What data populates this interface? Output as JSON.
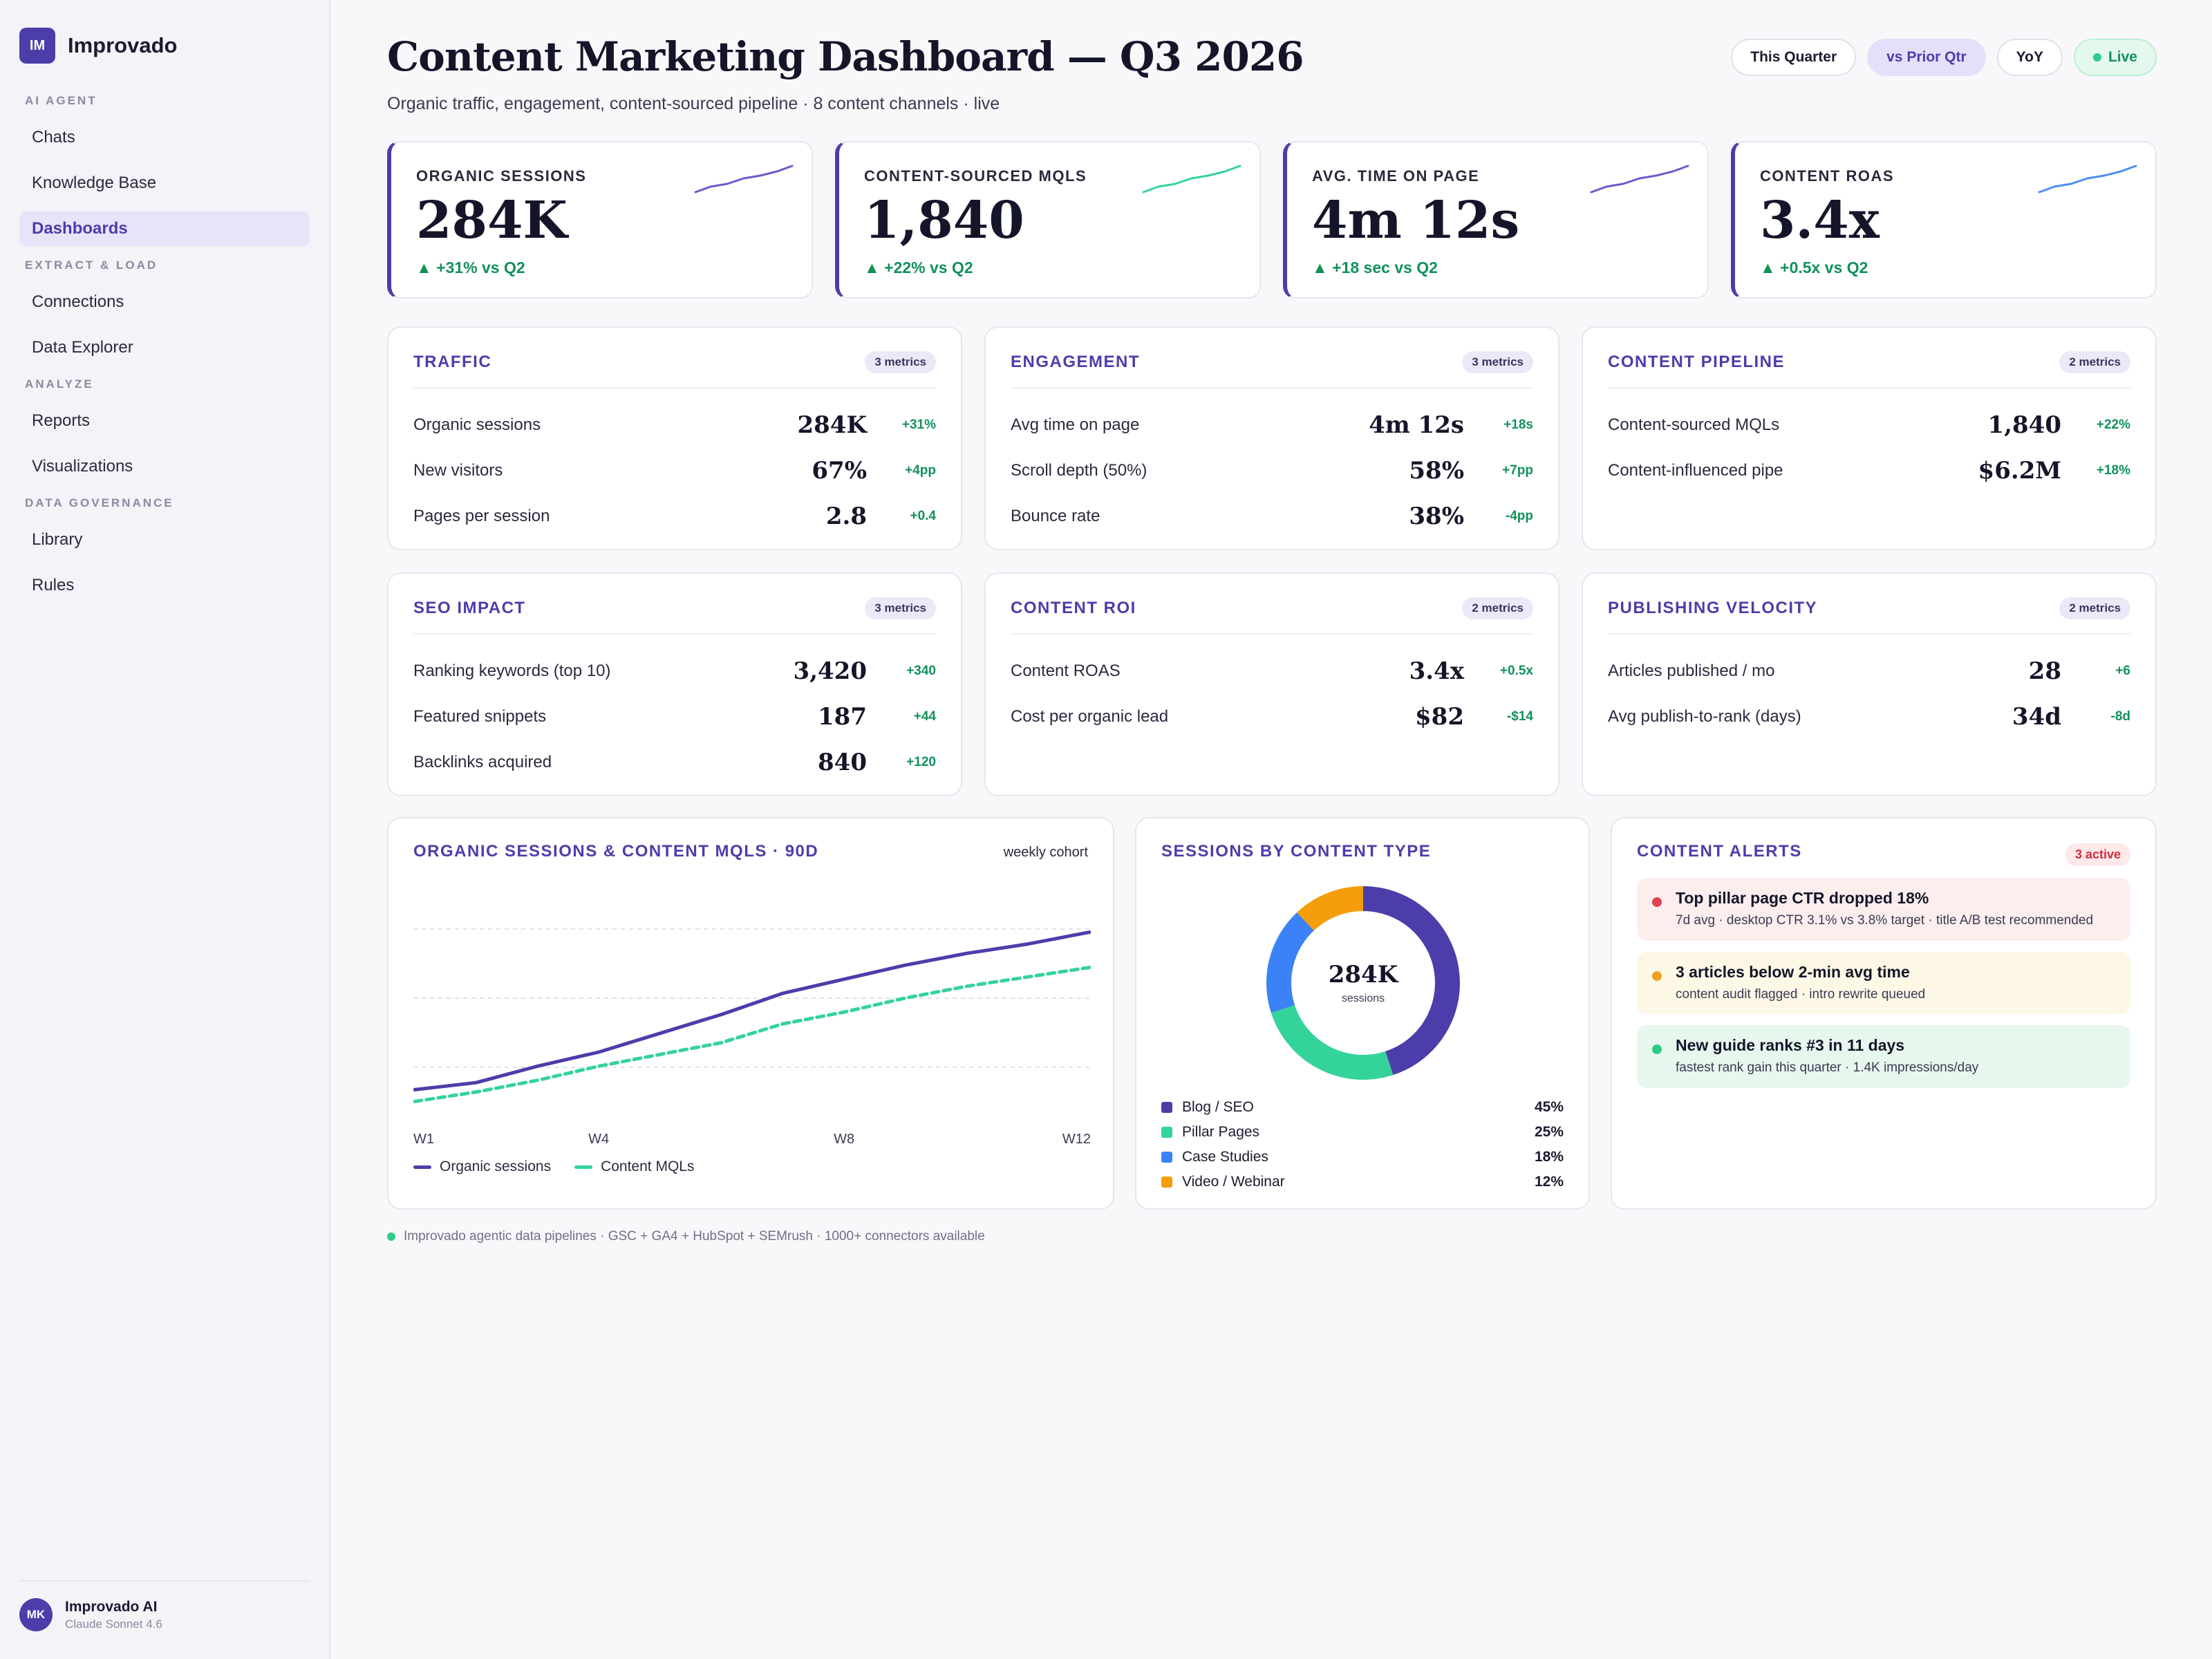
{
  "app": {
    "badge": "IM",
    "name": "Improvado"
  },
  "nav": [
    {
      "section": "AI AGENT",
      "items": [
        "Chats",
        "Knowledge Base",
        "Dashboards"
      ]
    },
    {
      "section": "EXTRACT & LOAD",
      "items": [
        "Connections",
        "Data Explorer"
      ]
    },
    {
      "section": "ANALYZE",
      "items": [
        "Reports",
        "Visualizations"
      ]
    },
    {
      "section": "DATA GOVERNANCE",
      "items": [
        "Library",
        "Rules"
      ]
    }
  ],
  "active_nav": "Dashboards",
  "user": {
    "initials": "MK",
    "name": "Improvado AI",
    "model": "Claude Sonnet 4.6"
  },
  "header": {
    "title": "Content Marketing Dashboard — Q3 2026",
    "subtitle": "Organic traffic, engagement, content-sourced pipeline · 8 content channels · live",
    "filters": [
      "This Quarter",
      "vs Prior Qtr",
      "YoY",
      "Live"
    ],
    "selected_filter": "vs Prior Qtr"
  },
  "kpis": [
    {
      "label": "ORGANIC SESSIONS",
      "value": "284K",
      "delta": "▲ +31% vs Q2",
      "spark_color": "#6a5acd"
    },
    {
      "label": "CONTENT-SOURCED MQLS",
      "value": "1,840",
      "delta": "▲ +22% vs Q2",
      "spark_color": "#34d399"
    },
    {
      "label": "AVG. TIME ON PAGE",
      "value": "4m 12s",
      "delta": "▲ +18 sec vs Q2",
      "spark_color": "#6a5acd"
    },
    {
      "label": "CONTENT ROAS",
      "value": "3.4x",
      "delta": "▲ +0.5x vs Q2",
      "spark_color": "#4c8df6"
    }
  ],
  "cards": [
    {
      "title": "TRAFFIC",
      "chip": "3 metrics",
      "rows": [
        {
          "label": "Organic sessions",
          "value": "284K",
          "delta": "+31%"
        },
        {
          "label": "New visitors",
          "value": "67%",
          "delta": "+4pp"
        },
        {
          "label": "Pages per session",
          "value": "2.8",
          "delta": "+0.4"
        }
      ]
    },
    {
      "title": "ENGAGEMENT",
      "chip": "3 metrics",
      "rows": [
        {
          "label": "Avg time on page",
          "value": "4m 12s",
          "delta": "+18s"
        },
        {
          "label": "Scroll depth (50%)",
          "value": "58%",
          "delta": "+7pp"
        },
        {
          "label": "Bounce rate",
          "value": "38%",
          "delta": "-4pp"
        }
      ]
    },
    {
      "title": "CONTENT PIPELINE",
      "chip": "2 metrics",
      "rows": [
        {
          "label": "Content-sourced MQLs",
          "value": "1,840",
          "delta": "+22%"
        },
        {
          "label": "Content-influenced pipe",
          "value": "$6.2M",
          "delta": "+18%"
        }
      ]
    },
    {
      "title": "SEO IMPACT",
      "chip": "3 metrics",
      "rows": [
        {
          "label": "Ranking keywords (top 10)",
          "value": "3,420",
          "delta": "+340"
        },
        {
          "label": "Featured snippets",
          "value": "187",
          "delta": "+44"
        },
        {
          "label": "Backlinks acquired",
          "value": "840",
          "delta": "+120"
        }
      ]
    },
    {
      "title": "CONTENT ROI",
      "chip": "2 metrics",
      "rows": [
        {
          "label": "Content ROAS",
          "value": "3.4x",
          "delta": "+0.5x"
        },
        {
          "label": "Cost per organic lead",
          "value": "$82",
          "delta": "-$14"
        }
      ]
    },
    {
      "title": "PUBLISHING VELOCITY",
      "chip": "2 metrics",
      "rows": [
        {
          "label": "Articles published / mo",
          "value": "28",
          "delta": "+6"
        },
        {
          "label": "Avg publish-to-rank (days)",
          "value": "34d",
          "delta": "-8d"
        }
      ]
    }
  ],
  "line_panel": {
    "title": "ORGANIC SESSIONS & CONTENT MQLS · 90D",
    "note": "weekly cohort"
  },
  "donut_panel": {
    "title": "SESSIONS BY CONTENT TYPE",
    "center_value": "284K",
    "center_label": "sessions"
  },
  "alerts_panel": {
    "title": "CONTENT ALERTS",
    "count": "3 active",
    "alerts": [
      {
        "severity": "red",
        "title": "Top pillar page CTR dropped 18%",
        "detail": "7d avg · desktop CTR 3.1% vs 3.8% target · title A/B test recommended"
      },
      {
        "severity": "amber",
        "title": "3 articles below 2-min avg time",
        "detail": "content audit flagged · intro rewrite queued"
      },
      {
        "severity": "green",
        "title": "New guide ranks #3 in 11 days",
        "detail": "fastest rank gain this quarter · 1.4K impressions/day"
      }
    ]
  },
  "footnote": "Improvado agentic data pipelines · GSC + GA4 + HubSpot + SEMrush · 1000+ connectors available",
  "colors": {
    "accent": "#4b3eaa",
    "green": "#34d399",
    "blue": "#3b82f6",
    "amber": "#f59e0b",
    "red": "#e0434f",
    "positive": "#11915a"
  },
  "chart_data": [
    {
      "type": "line",
      "x": [
        "W1",
        "W2",
        "W3",
        "W4",
        "W5",
        "W6",
        "W7",
        "W8",
        "W9",
        "W10",
        "W11",
        "W12"
      ],
      "x_tick_labels": [
        "W1",
        "W4",
        "W8",
        "W12"
      ],
      "series": [
        {
          "name": "Organic sessions",
          "color": "#4b3eaa",
          "style": "solid",
          "values": [
            14,
            17,
            24,
            30,
            38,
            46,
            55,
            61,
            67,
            72,
            76,
            81
          ]
        },
        {
          "name": "Content MQLs",
          "color": "#34d399",
          "style": "dashed",
          "values": [
            9,
            13,
            18,
            24,
            29,
            34,
            42,
            47,
            53,
            58,
            62,
            66
          ]
        }
      ],
      "ylim": [
        0,
        100
      ],
      "grid": true,
      "legend": "bottom-left"
    },
    {
      "type": "pie",
      "categories": [
        "Blog / SEO",
        "Pillar Pages",
        "Case Studies",
        "Video / Webinar"
      ],
      "values": [
        45,
        25,
        18,
        12
      ],
      "labels": [
        "45%",
        "25%",
        "18%",
        "12%"
      ],
      "colors": [
        "#4b3eaa",
        "#34d399",
        "#3b82f6",
        "#f59e0b"
      ],
      "center_value": "284K",
      "center_label": "sessions",
      "legend": "bottom"
    }
  ]
}
